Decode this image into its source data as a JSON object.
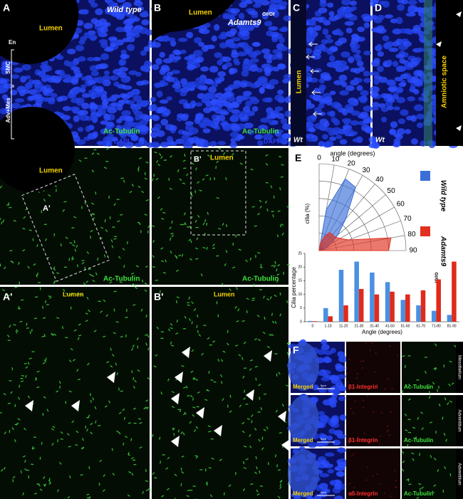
{
  "panels": {
    "A": {
      "letter": "A",
      "title": "Wild type",
      "lumen": "Lumen",
      "layers": [
        "En",
        "SMC",
        "Adv+Mes"
      ],
      "stain": "Ac-Tubulin",
      "counterstain": "DAPI"
    },
    "B": {
      "letter": "B",
      "lumen": "Lumen",
      "title": "Adamts9",
      "superscript": "Gt/Gt",
      "stain": "Ac-Tubulin",
      "counterstain": "DAPI"
    },
    "C": {
      "letter": "C",
      "lumen": "Lumen",
      "genotype": "Wt"
    },
    "D": {
      "letter": "D",
      "space": "Amniotic space",
      "genotype": "Wt"
    },
    "A2": {
      "lumen": "Lumen",
      "inset": "A'",
      "stain": "Ac-Tubulin"
    },
    "B2": {
      "inset": "B'",
      "lumen": "Lumen",
      "stain": "Ac-Tubulin"
    },
    "A3": {
      "letter": "A'",
      "lumen": "Lumen"
    },
    "B3": {
      "letter": "B'",
      "lumen": "Lumen"
    },
    "E": {
      "letter": "E"
    },
    "F": {
      "letter": "F",
      "scale": "5μm",
      "rows": [
        {
          "cells": [
            "Merged",
            "β1-Integrin",
            "Ac-Tubulin"
          ],
          "tissue": "Mesothelium"
        },
        {
          "cells": [
            "Merged",
            "β1-Integrin",
            "Ac-Tubulin"
          ],
          "tissue": "Adventitium"
        },
        {
          "cells": [
            "Merged",
            "α5-Integrin",
            "Ac-Tubulin"
          ],
          "tissue": "Adventitium"
        }
      ]
    }
  },
  "chart_data": [
    {
      "type": "polar",
      "title": "angle (degrees)",
      "y_label": "cilia (%)",
      "angles": [
        0,
        10,
        20,
        30,
        40,
        50,
        60,
        70,
        80,
        90
      ],
      "ylim": [
        0,
        25
      ],
      "series": [
        {
          "name": "Wild type",
          "color": "#3a6fd8",
          "values": [
            0,
            12,
            22,
            21,
            12,
            7,
            4,
            2,
            1,
            0
          ]
        },
        {
          "name": "Adamts9",
          "superscript": "Gt/Gt",
          "color": "#e0301e",
          "values": [
            0,
            2,
            4,
            6,
            6,
            6,
            7,
            9,
            21,
            20
          ]
        }
      ]
    },
    {
      "type": "bar",
      "x_label": "Angle (degrees)",
      "y_label": "Cilia percentage",
      "categories": [
        "0",
        "1-10",
        "11-20",
        "21-30",
        "31-40",
        "41-50",
        "51-60",
        "61-70",
        "71-80",
        "81-90"
      ],
      "ylim": [
        0,
        25
      ],
      "yticks": [
        0,
        5,
        10,
        15,
        20,
        25
      ],
      "series": [
        {
          "name": "Wild type",
          "color": "#4a90e2",
          "values": [
            0.3,
            5,
            19,
            22,
            18,
            14.5,
            8,
            6,
            4,
            2.5
          ]
        },
        {
          "name": "Adamts9",
          "color": "#e02a1a",
          "values": [
            0.2,
            2,
            6,
            12,
            10,
            11,
            10,
            11.5,
            15.5,
            22
          ]
        }
      ]
    }
  ]
}
